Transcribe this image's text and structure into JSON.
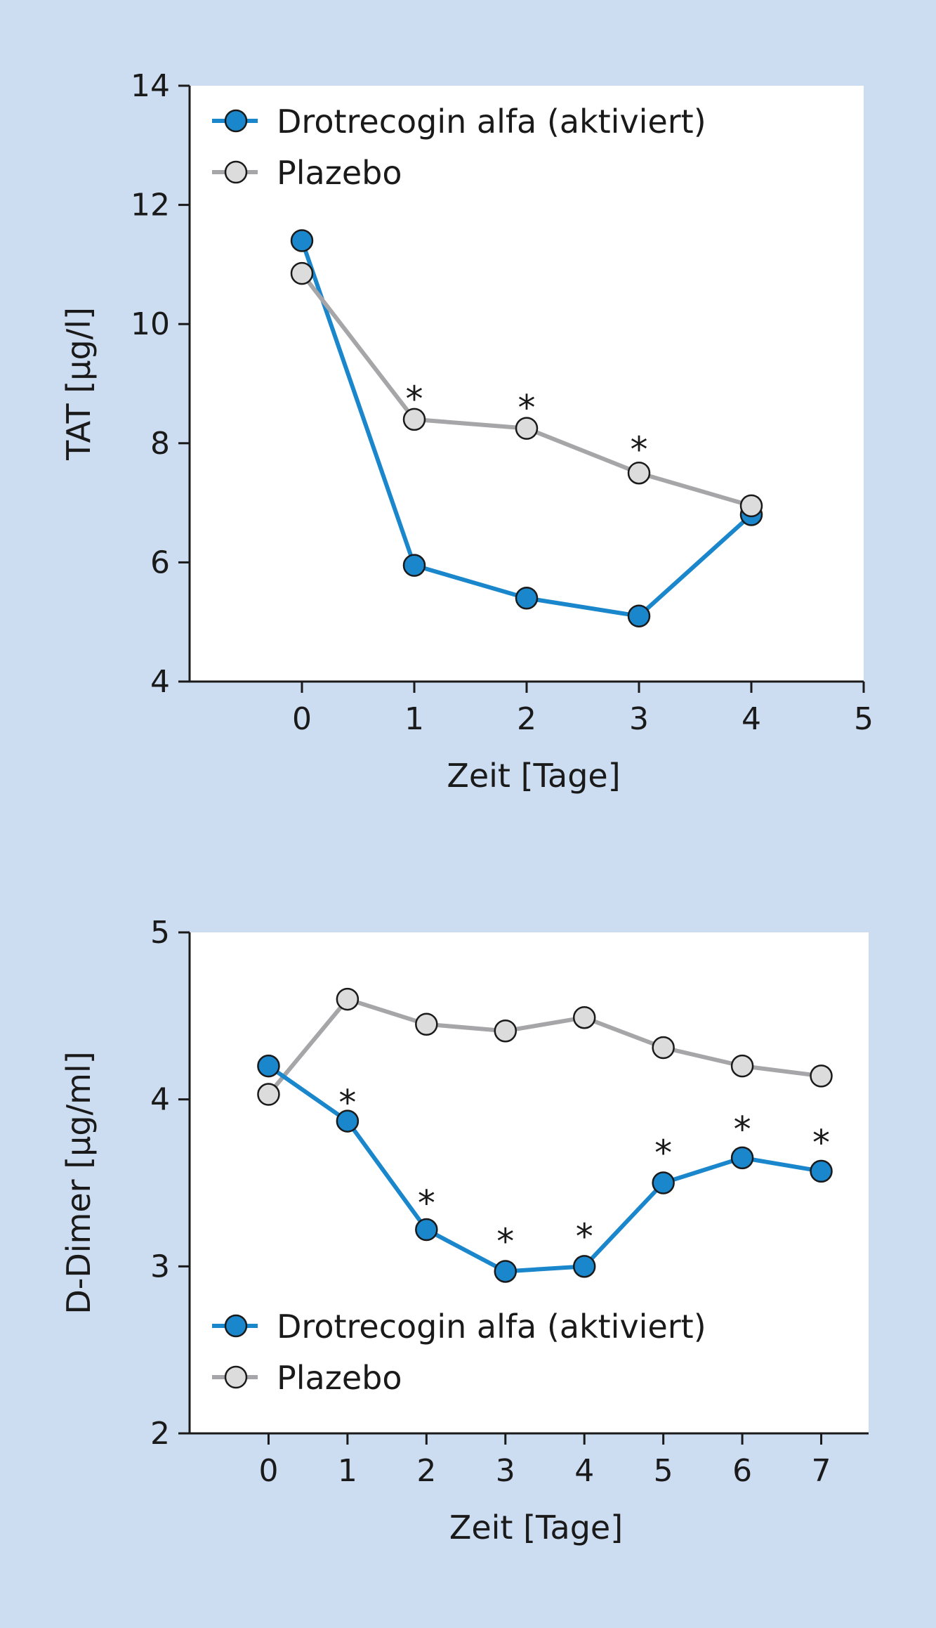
{
  "colors": {
    "background": "#ccdcf1",
    "plot_area": "#ffffff",
    "drotrecogin": "#1a86cc",
    "placebo_line": "#a6a6a8",
    "placebo_fill": "#dcdcdc",
    "marker_edge": "#1a1a1a",
    "axis": "#1a1a1a"
  },
  "chart_data": [
    {
      "type": "line",
      "title": "",
      "xlabel": "Zeit [Tage]",
      "ylabel": "TAT [µg/l]",
      "xlim": [
        -1,
        5
      ],
      "ylim": [
        4,
        14
      ],
      "xticks": [
        0,
        1,
        2,
        3,
        4,
        5
      ],
      "yticks": [
        4,
        6,
        8,
        10,
        12,
        14
      ],
      "legend_position": "top-left",
      "series": [
        {
          "name": "Drotrecogin alfa (aktiviert)",
          "key": "drotrecogin",
          "x": [
            0,
            1,
            2,
            3,
            4
          ],
          "y": [
            11.4,
            5.95,
            5.4,
            5.1,
            6.8
          ]
        },
        {
          "name": "Plazebo",
          "key": "placebo",
          "x": [
            0,
            1,
            2,
            3,
            4
          ],
          "y": [
            10.85,
            8.4,
            8.25,
            7.5,
            6.95
          ]
        }
      ],
      "annotations": [
        {
          "text": "*",
          "x": 1,
          "y": 8.8
        },
        {
          "text": "*",
          "x": 2,
          "y": 8.65
        },
        {
          "text": "*",
          "x": 3,
          "y": 7.95
        }
      ]
    },
    {
      "type": "line",
      "title": "",
      "xlabel": "Zeit [Tage]",
      "ylabel": "D-Dimer [µg/ml]",
      "xlim": [
        -1,
        7.6
      ],
      "ylim": [
        2,
        5
      ],
      "xticks": [
        0,
        1,
        2,
        3,
        4,
        5,
        6,
        7
      ],
      "yticks": [
        2,
        3,
        4,
        5
      ],
      "legend_position": "bottom-left",
      "series": [
        {
          "name": "Drotrecogin alfa (aktiviert)",
          "key": "drotrecogin",
          "x": [
            0,
            1,
            2,
            3,
            4,
            5,
            6,
            7
          ],
          "y": [
            4.2,
            3.87,
            3.22,
            2.97,
            3.0,
            3.5,
            3.65,
            3.57
          ]
        },
        {
          "name": "Plazebo",
          "key": "placebo",
          "x": [
            0,
            1,
            2,
            3,
            4,
            5,
            6,
            7
          ],
          "y": [
            4.03,
            4.6,
            4.45,
            4.41,
            4.49,
            4.31,
            4.2,
            4.14
          ]
        }
      ],
      "annotations": [
        {
          "text": "*",
          "x": 1,
          "y": 4.0
        },
        {
          "text": "*",
          "x": 2,
          "y": 3.4
        },
        {
          "text": "*",
          "x": 3,
          "y": 3.17
        },
        {
          "text": "*",
          "x": 4,
          "y": 3.2
        },
        {
          "text": "*",
          "x": 5,
          "y": 3.7
        },
        {
          "text": "*",
          "x": 6,
          "y": 3.84
        },
        {
          "text": "*",
          "x": 7,
          "y": 3.76
        }
      ]
    }
  ]
}
